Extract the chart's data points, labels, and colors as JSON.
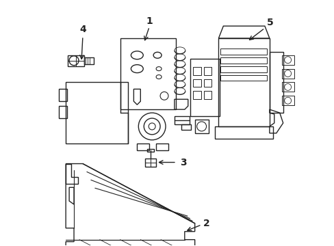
{
  "background_color": "#ffffff",
  "line_color": "#222222",
  "line_width": 1.0,
  "label_fontsize": 10,
  "figsize": [
    4.89,
    3.6
  ],
  "dpi": 100
}
